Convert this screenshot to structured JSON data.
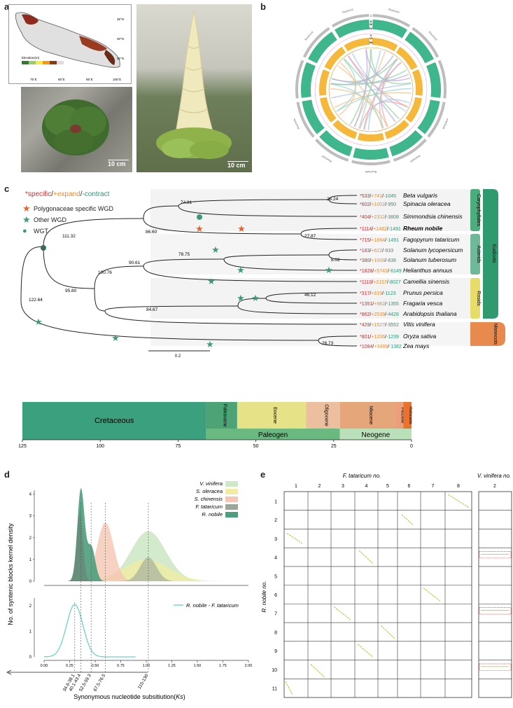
{
  "panels": {
    "a": "a",
    "b": "b",
    "c": "c",
    "d": "d",
    "e": "e"
  },
  "panel_a": {
    "map_lat_labels": [
      "35°N",
      "30°N",
      "25°N"
    ],
    "map_lon_labels": [
      "75°E",
      "85°E",
      "95°E",
      "105°E"
    ],
    "elevation_legend_title": "Elevation(m)",
    "scale_leaf": "10 cm",
    "scale_plant": "10 cm"
  },
  "panel_b": {
    "rings": [
      "I",
      "II",
      "III",
      "IV",
      "V",
      "VI",
      "VII"
    ],
    "chrom_labels": [
      "RnoChr01",
      "RnoChr02",
      "RnoChr03",
      "RnoChr04",
      "RnoChr05",
      "RnoChr06",
      "RnoChr07",
      "RnoChr08",
      "RnoChr09",
      "RnoChr10",
      "RnoChr11"
    ]
  },
  "panel_c": {
    "legend_title_specific": "*specific",
    "legend_title_expand": "+expand",
    "legend_title_contract": "-contract",
    "legend_title_sep": "/",
    "legend_items": [
      "Polygonaceae specific WGD",
      "Other WGD",
      "WGT"
    ],
    "species": [
      {
        "name": "Beta vulgaris",
        "s": "*533",
        "e": "+741",
        "c": "-1045"
      },
      {
        "name": "Spinacia oleracea",
        "s": "*602",
        "e": "+1002",
        "c": "-950"
      },
      {
        "name": "Simmondsia chinensis",
        "s": "*404",
        "e": "+2312",
        "c": "-3808"
      },
      {
        "name": "Rheum nobile",
        "s": "*1114",
        "e": "+1482",
        "c": "-1491"
      },
      {
        "name": "Fagopyrum tataricum",
        "s": "*715",
        "e": "+1894",
        "c": "-1491"
      },
      {
        "name": "Solanum lycopersicum",
        "s": "*183",
        "e": "+622",
        "c": "-933"
      },
      {
        "name": "Solanum tuberosum",
        "s": "*380",
        "e": "+1008",
        "c": "-836"
      },
      {
        "name": "Helianthus annuus",
        "s": "*1828",
        "e": "+5742",
        "c": "-6149"
      },
      {
        "name": "Camellia sinensis",
        "s": "*1110",
        "e": "+2157",
        "c": "-8027"
      },
      {
        "name": "Prunus persica",
        "s": "*317",
        "e": "+919",
        "c": "-1123"
      },
      {
        "name": "Fragaria vesca",
        "s": "*1351",
        "e": "+982",
        "c": "-1355"
      },
      {
        "name": "Arabidopsis thaliana",
        "s": "*862",
        "e": "+2539",
        "c": "-4428"
      },
      {
        "name": "Vitis vinifera",
        "s": "*429",
        "e": "+1527",
        "c": "-3552"
      },
      {
        "name": "Oryza sativa",
        "s": "*801",
        "e": "+1206",
        "c": "-1239"
      },
      {
        "name": "Zea mays",
        "s": "*1084",
        "e": "+3489",
        "c": "-1382"
      }
    ],
    "node_labels": [
      "26.24",
      "74.91",
      "86.60",
      "27.87",
      "111.32",
      "8.02",
      "78.75",
      "90.61",
      "100.76",
      "46.12",
      "95.80",
      "84.67",
      "122.64",
      "26.73"
    ],
    "groups": [
      "Caryophyllales",
      "Asterids",
      "Rosids",
      "Monocots",
      "Eudicots"
    ],
    "scalebar": "0.2",
    "epochs": [
      "Cretaceous",
      "Paleocene",
      "Eocene",
      "Oligocene",
      "Miocene",
      "Pliocene",
      "Holocene"
    ],
    "periods": [
      "Paleogen",
      "Neogene"
    ],
    "timeline_ticks": [
      "125",
      "100",
      "75",
      "50",
      "25",
      "0"
    ]
  },
  "panel_d": {
    "ylabel": "No. of syntenic blocks kernel density",
    "xlabel": "Synonymous nucleotide subsitiution(",
    "xlabel_var": "Ks",
    "xlabel_end": ")",
    "upper_ticks_y": [
      "4",
      "3",
      "2",
      "1",
      "0"
    ],
    "lower_ticks_y": [
      "2",
      "1",
      "0"
    ],
    "x_ticks": [
      "0.00",
      "0.25",
      "0.50",
      "0.75",
      "1.00",
      "1.25",
      "1.50",
      "1.75",
      "2.00"
    ],
    "legend_upper": [
      "V. vinifera",
      "S. oleracea",
      "S. chinensis",
      "F. tataricum",
      "R. nobile"
    ],
    "legend_lower": "R. nobile - F. tataricum",
    "age_labels": [
      "34.6-38.1",
      "40.1-43.4",
      "52.5-59.3",
      "67.5-76.5",
      "115-130"
    ],
    "colors": {
      "vv": "#cfe8c8",
      "so": "#f1eca0",
      "sc": "#f5c6b3",
      "ft": "#9aa79a",
      "rn": "#4c9e7c",
      "line": "#6cd3c7"
    }
  },
  "panel_e": {
    "ft_title": "F. tataricum no.",
    "vv_title": "V. vinifera no.",
    "rn_title": "R. nobile no.",
    "ft_cols": [
      "1",
      "2",
      "3",
      "4",
      "5",
      "6",
      "7",
      "8"
    ],
    "vv_cols": [
      "2"
    ],
    "rn_rows": [
      "1",
      "2",
      "3",
      "4",
      "5",
      "6",
      "7",
      "8",
      "9",
      "10",
      "11"
    ]
  }
}
